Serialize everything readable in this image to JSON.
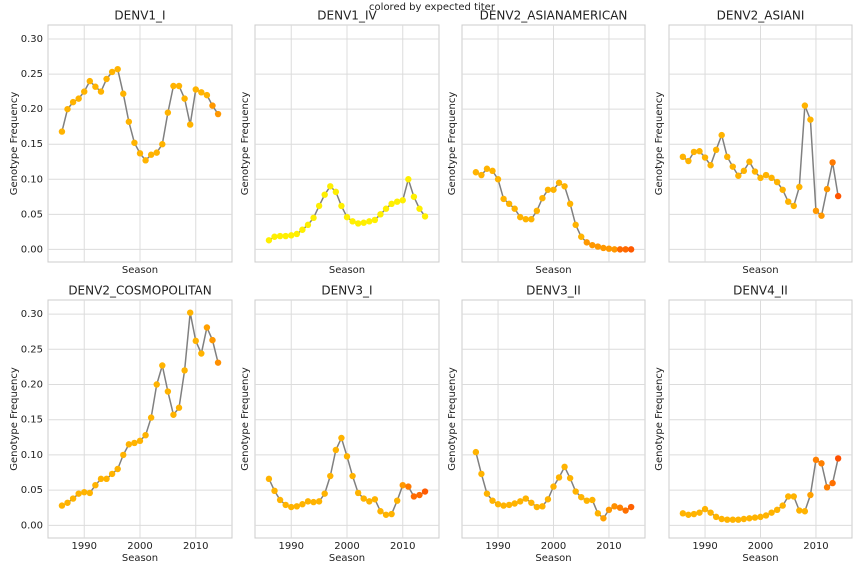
{
  "title": "colored by expected titer",
  "chart_data": [
    {
      "type": "line",
      "title": "DENV1_I",
      "xlabel": "Season",
      "ylabel": "Genotype Frequency",
      "line_color": "#808080",
      "x": [
        1986,
        1987,
        1988,
        1989,
        1990,
        1991,
        1992,
        1993,
        1994,
        1995,
        1996,
        1997,
        1998,
        1999,
        2000,
        2001,
        2002,
        2003,
        2004,
        2005,
        2006,
        2007,
        2008,
        2009,
        2010,
        2011,
        2012,
        2013,
        2014
      ],
      "values": [
        0.168,
        0.2,
        0.21,
        0.215,
        0.225,
        0.24,
        0.232,
        0.225,
        0.243,
        0.253,
        0.257,
        0.222,
        0.182,
        0.152,
        0.137,
        0.127,
        0.135,
        0.138,
        0.15,
        0.195,
        0.233,
        0.233,
        0.215,
        0.178,
        0.228,
        0.224,
        0.22,
        0.205,
        0.193
      ],
      "colors": [
        "#ffb300",
        "#ffb300",
        "#ffb300",
        "#ffb300",
        "#ffb300",
        "#ffb300",
        "#ffb300",
        "#ffb300",
        "#ffb300",
        "#ffb300",
        "#ffb300",
        "#ffb300",
        "#ffb300",
        "#ffb300",
        "#ffb300",
        "#ffb300",
        "#ffb300",
        "#ffb300",
        "#ffb300",
        "#ffb300",
        "#ffb300",
        "#ffb300",
        "#ffb300",
        "#ffb300",
        "#ffb300",
        "#ffb300",
        "#ffb300",
        "#ff9800",
        "#ff9800"
      ],
      "xlim": [
        1983.5,
        2016.5
      ],
      "ylim": [
        -0.018,
        0.32
      ],
      "xticks": [
        1990,
        2000,
        2010
      ],
      "yticks": [
        {
          "value": 0,
          "label": "0.00"
        },
        {
          "value": 0.05,
          "label": "0.05"
        },
        {
          "value": 0.1,
          "label": "0.10"
        },
        {
          "value": 0.15,
          "label": "0.15"
        },
        {
          "value": 0.2,
          "label": "0.20"
        },
        {
          "value": 0.25,
          "label": "0.25"
        },
        {
          "value": 0.3,
          "label": "0.30"
        }
      ]
    },
    {
      "type": "line",
      "title": "DENV1_IV",
      "xlabel": "Season",
      "ylabel": "Genotype Frequency",
      "line_color": "#808080",
      "x": [
        1986,
        1987,
        1988,
        1989,
        1990,
        1991,
        1992,
        1993,
        1994,
        1995,
        1996,
        1997,
        1998,
        1999,
        2000,
        2001,
        2002,
        2003,
        2004,
        2005,
        2006,
        2007,
        2008,
        2009,
        2010,
        2011,
        2012,
        2013,
        2014
      ],
      "values": [
        0.013,
        0.018,
        0.019,
        0.019,
        0.02,
        0.022,
        0.028,
        0.035,
        0.045,
        0.062,
        0.078,
        0.09,
        0.082,
        0.062,
        0.046,
        0.04,
        0.037,
        0.038,
        0.04,
        0.042,
        0.05,
        0.058,
        0.065,
        0.068,
        0.07,
        0.1,
        0.075,
        0.058,
        0.047
      ],
      "colors": [
        "#ffef00",
        "#ffef00",
        "#ffef00",
        "#ffef00",
        "#ffef00",
        "#ffef00",
        "#ffef00",
        "#ffef00",
        "#ffef00",
        "#ffef00",
        "#ffef00",
        "#ffef00",
        "#ffef00",
        "#ffef00",
        "#ffef00",
        "#ffef00",
        "#ffef00",
        "#ffef00",
        "#ffef00",
        "#ffef00",
        "#ffef00",
        "#ffef00",
        "#ffef00",
        "#ffef00",
        "#ffef00",
        "#ffef00",
        "#ffef00",
        "#ffef00",
        "#ffef00"
      ],
      "xlim": [
        1983.5,
        2016.5
      ],
      "ylim": [
        -0.018,
        0.32
      ],
      "xticks": [
        1990,
        2000,
        2010
      ],
      "yticks": [
        {
          "value": 0,
          "label": "0.00"
        },
        {
          "value": 0.05,
          "label": "0.05"
        },
        {
          "value": 0.1,
          "label": "0.10"
        },
        {
          "value": 0.15,
          "label": "0.15"
        },
        {
          "value": 0.2,
          "label": "0.20"
        },
        {
          "value": 0.25,
          "label": "0.25"
        },
        {
          "value": 0.3,
          "label": "0.30"
        }
      ]
    },
    {
      "type": "line",
      "title": "DENV2_ASIANAMERICAN",
      "xlabel": "Season",
      "ylabel": "Genotype Frequency",
      "line_color": "#808080",
      "x": [
        1986,
        1987,
        1988,
        1989,
        1990,
        1991,
        1992,
        1993,
        1994,
        1995,
        1996,
        1997,
        1998,
        1999,
        2000,
        2001,
        2002,
        2003,
        2004,
        2005,
        2006,
        2007,
        2008,
        2009,
        2010,
        2011,
        2012,
        2013,
        2014
      ],
      "values": [
        0.11,
        0.106,
        0.115,
        0.112,
        0.1,
        0.072,
        0.065,
        0.058,
        0.046,
        0.043,
        0.043,
        0.055,
        0.073,
        0.085,
        0.085,
        0.095,
        0.09,
        0.065,
        0.035,
        0.018,
        0.01,
        0.006,
        0.004,
        0.002,
        0.001,
        0,
        0,
        0,
        0
      ],
      "colors": [
        "#ffb300",
        "#ffb300",
        "#ffb300",
        "#ffb300",
        "#ffb300",
        "#ffb300",
        "#ffb300",
        "#ffb300",
        "#ffb300",
        "#ffb300",
        "#ffb300",
        "#ffb300",
        "#ffb300",
        "#ffb300",
        "#ffb300",
        "#ffb300",
        "#ffb300",
        "#ffb300",
        "#ffb300",
        "#ffb300",
        "#ff9800",
        "#ff9800",
        "#ff9800",
        "#ff9800",
        "#ff9800",
        "#ff9800",
        "#ff6a00",
        "#ff6a00",
        "#ff5a00"
      ],
      "xlim": [
        1983.5,
        2016.5
      ],
      "ylim": [
        -0.018,
        0.32
      ],
      "xticks": [
        1990,
        2000,
        2010
      ],
      "yticks": [
        {
          "value": 0,
          "label": "0.00"
        },
        {
          "value": 0.05,
          "label": "0.05"
        },
        {
          "value": 0.1,
          "label": "0.10"
        },
        {
          "value": 0.15,
          "label": "0.15"
        },
        {
          "value": 0.2,
          "label": "0.20"
        },
        {
          "value": 0.25,
          "label": "0.25"
        },
        {
          "value": 0.3,
          "label": "0.30"
        }
      ]
    },
    {
      "type": "line",
      "title": "DENV2_ASIANI",
      "xlabel": "Season",
      "ylabel": "Genotype Frequency",
      "line_color": "#808080",
      "x": [
        1986,
        1987,
        1988,
        1989,
        1990,
        1991,
        1992,
        1993,
        1994,
        1995,
        1996,
        1997,
        1998,
        1999,
        2000,
        2001,
        2002,
        2003,
        2004,
        2005,
        2006,
        2007,
        2008,
        2009,
        2010,
        2011,
        2012,
        2013,
        2014
      ],
      "values": [
        0.132,
        0.126,
        0.139,
        0.14,
        0.131,
        0.12,
        0.142,
        0.163,
        0.132,
        0.118,
        0.105,
        0.112,
        0.125,
        0.111,
        0.102,
        0.106,
        0.102,
        0.096,
        0.085,
        0.068,
        0.062,
        0.089,
        0.205,
        0.185,
        0.055,
        0.048,
        0.086,
        0.124,
        0.076
      ],
      "colors": [
        "#ffb300",
        "#ffb300",
        "#ffb300",
        "#ffb300",
        "#ffb300",
        "#ffb300",
        "#ffb300",
        "#ffb300",
        "#ffb300",
        "#ffb300",
        "#ffb300",
        "#ffb300",
        "#ffb300",
        "#ffb300",
        "#ffb300",
        "#ffb300",
        "#ffb300",
        "#ffb300",
        "#ffb300",
        "#ffb300",
        "#ffb300",
        "#ffb300",
        "#ffb300",
        "#ffb300",
        "#ff9800",
        "#ff9800",
        "#ff9800",
        "#ff7a00",
        "#ff5500"
      ],
      "xlim": [
        1983.5,
        2016.5
      ],
      "ylim": [
        -0.018,
        0.32
      ],
      "xticks": [
        1990,
        2000,
        2010
      ],
      "yticks": [
        {
          "value": 0,
          "label": "0.00"
        },
        {
          "value": 0.05,
          "label": "0.05"
        },
        {
          "value": 0.1,
          "label": "0.10"
        },
        {
          "value": 0.15,
          "label": "0.15"
        },
        {
          "value": 0.2,
          "label": "0.20"
        },
        {
          "value": 0.25,
          "label": "0.25"
        },
        {
          "value": 0.3,
          "label": "0.30"
        }
      ]
    },
    {
      "type": "line",
      "title": "DENV2_COSMOPOLITAN",
      "xlabel": "Season",
      "ylabel": "Genotype Frequency",
      "line_color": "#808080",
      "x": [
        1986,
        1987,
        1988,
        1989,
        1990,
        1991,
        1992,
        1993,
        1994,
        1995,
        1996,
        1997,
        1998,
        1999,
        2000,
        2001,
        2002,
        2003,
        2004,
        2005,
        2006,
        2007,
        2008,
        2009,
        2010,
        2011,
        2012,
        2013,
        2014
      ],
      "values": [
        0.028,
        0.032,
        0.038,
        0.045,
        0.047,
        0.046,
        0.057,
        0.066,
        0.066,
        0.073,
        0.08,
        0.1,
        0.115,
        0.117,
        0.12,
        0.128,
        0.153,
        0.2,
        0.227,
        0.19,
        0.157,
        0.167,
        0.22,
        0.302,
        0.262,
        0.244,
        0.281,
        0.263,
        0.231
      ],
      "colors": [
        "#ffb300",
        "#ffb300",
        "#ffb300",
        "#ffb300",
        "#ffb300",
        "#ffb300",
        "#ffb300",
        "#ffb300",
        "#ffb300",
        "#ffb300",
        "#ffb300",
        "#ffb300",
        "#ffb300",
        "#ffb300",
        "#ffb300",
        "#ffb300",
        "#ffb300",
        "#ffb300",
        "#ffb300",
        "#ffb300",
        "#ffb300",
        "#ffb300",
        "#ffb300",
        "#ffb300",
        "#ffb300",
        "#ffb300",
        "#ffa000",
        "#ff9800",
        "#ff9000"
      ],
      "xlim": [
        1983.5,
        2016.5
      ],
      "ylim": [
        -0.018,
        0.32
      ],
      "xticks": [
        1990,
        2000,
        2010
      ],
      "yticks": [
        {
          "value": 0,
          "label": "0.00"
        },
        {
          "value": 0.05,
          "label": "0.05"
        },
        {
          "value": 0.1,
          "label": "0.10"
        },
        {
          "value": 0.15,
          "label": "0.15"
        },
        {
          "value": 0.2,
          "label": "0.20"
        },
        {
          "value": 0.25,
          "label": "0.25"
        },
        {
          "value": 0.3,
          "label": "0.30"
        }
      ]
    },
    {
      "type": "line",
      "title": "DENV3_I",
      "xlabel": "Season",
      "ylabel": "Genotype Frequency",
      "line_color": "#808080",
      "x": [
        1986,
        1987,
        1988,
        1989,
        1990,
        1991,
        1992,
        1993,
        1994,
        1995,
        1996,
        1997,
        1998,
        1999,
        2000,
        2001,
        2002,
        2003,
        2004,
        2005,
        2006,
        2007,
        2008,
        2009,
        2010,
        2011,
        2012,
        2013,
        2014
      ],
      "values": [
        0.066,
        0.049,
        0.036,
        0.029,
        0.026,
        0.027,
        0.03,
        0.034,
        0.033,
        0.034,
        0.045,
        0.07,
        0.107,
        0.124,
        0.098,
        0.07,
        0.046,
        0.038,
        0.034,
        0.037,
        0.02,
        0.015,
        0.016,
        0.035,
        0.057,
        0.055,
        0.041,
        0.043,
        0.048
      ],
      "colors": [
        "#ffb300",
        "#ffb300",
        "#ffb300",
        "#ffb300",
        "#ffb300",
        "#ffb300",
        "#ffb300",
        "#ffb300",
        "#ffb300",
        "#ffb300",
        "#ffb300",
        "#ffb300",
        "#ffb300",
        "#ffb300",
        "#ffb300",
        "#ffb300",
        "#ffb300",
        "#ffb300",
        "#ffb300",
        "#ffb300",
        "#ffb300",
        "#ffb300",
        "#ffb300",
        "#ffb300",
        "#ff9800",
        "#ff7a00",
        "#ff6a00",
        "#ff6a00",
        "#ff5a00"
      ],
      "xlim": [
        1983.5,
        2016.5
      ],
      "ylim": [
        -0.018,
        0.32
      ],
      "xticks": [
        1990,
        2000,
        2010
      ],
      "yticks": [
        {
          "value": 0,
          "label": "0.00"
        },
        {
          "value": 0.05,
          "label": "0.05"
        },
        {
          "value": 0.1,
          "label": "0.10"
        },
        {
          "value": 0.15,
          "label": "0.15"
        },
        {
          "value": 0.2,
          "label": "0.20"
        },
        {
          "value": 0.25,
          "label": "0.25"
        },
        {
          "value": 0.3,
          "label": "0.30"
        }
      ]
    },
    {
      "type": "line",
      "title": "DENV3_II",
      "xlabel": "Season",
      "ylabel": "Genotype Frequency",
      "line_color": "#808080",
      "x": [
        1986,
        1987,
        1988,
        1989,
        1990,
        1991,
        1992,
        1993,
        1994,
        1995,
        1996,
        1997,
        1998,
        1999,
        2000,
        2001,
        2002,
        2003,
        2004,
        2005,
        2006,
        2007,
        2008,
        2009,
        2010,
        2011,
        2012,
        2013,
        2014
      ],
      "values": [
        0.104,
        0.073,
        0.045,
        0.035,
        0.03,
        0.028,
        0.029,
        0.031,
        0.034,
        0.038,
        0.032,
        0.026,
        0.027,
        0.037,
        0.055,
        0.068,
        0.083,
        0.067,
        0.048,
        0.04,
        0.035,
        0.036,
        0.017,
        0.01,
        0.022,
        0.027,
        0.025,
        0.021,
        0.026
      ],
      "colors": [
        "#ffb300",
        "#ffb300",
        "#ffb300",
        "#ffb300",
        "#ffb300",
        "#ffb300",
        "#ffb300",
        "#ffb300",
        "#ffb300",
        "#ffb300",
        "#ffb300",
        "#ffb300",
        "#ffb300",
        "#ffb300",
        "#ffb300",
        "#ffb300",
        "#ffb300",
        "#ffb300",
        "#ffb300",
        "#ffb300",
        "#ffb300",
        "#ffb300",
        "#ffb300",
        "#ffa000",
        "#ff9800",
        "#ff9000",
        "#ff8000",
        "#ff7000",
        "#ff6000"
      ],
      "xlim": [
        1983.5,
        2016.5
      ],
      "ylim": [
        -0.018,
        0.32
      ],
      "xticks": [
        1990,
        2000,
        2010
      ],
      "yticks": [
        {
          "value": 0,
          "label": "0.00"
        },
        {
          "value": 0.05,
          "label": "0.05"
        },
        {
          "value": 0.1,
          "label": "0.10"
        },
        {
          "value": 0.15,
          "label": "0.15"
        },
        {
          "value": 0.2,
          "label": "0.20"
        },
        {
          "value": 0.25,
          "label": "0.25"
        },
        {
          "value": 0.3,
          "label": "0.30"
        }
      ]
    },
    {
      "type": "line",
      "title": "DENV4_II",
      "xlabel": "Season",
      "ylabel": "Genotype Frequency",
      "line_color": "#808080",
      "x": [
        1986,
        1987,
        1988,
        1989,
        1990,
        1991,
        1992,
        1993,
        1994,
        1995,
        1996,
        1997,
        1998,
        1999,
        2000,
        2001,
        2002,
        2003,
        2004,
        2005,
        2006,
        2007,
        2008,
        2009,
        2010,
        2011,
        2012,
        2013,
        2014
      ],
      "values": [
        0.017,
        0.015,
        0.016,
        0.018,
        0.023,
        0.018,
        0.012,
        0.009,
        0.008,
        0.008,
        0.008,
        0.009,
        0.01,
        0.011,
        0.012,
        0.014,
        0.018,
        0.022,
        0.028,
        0.041,
        0.041,
        0.021,
        0.02,
        0.043,
        0.093,
        0.088,
        0.054,
        0.06,
        0.095
      ],
      "colors": [
        "#ffb300",
        "#ffb300",
        "#ffb300",
        "#ffb300",
        "#ffb300",
        "#ffb300",
        "#ffb300",
        "#ffb300",
        "#ffb300",
        "#ffb300",
        "#ffb300",
        "#ffb300",
        "#ffb300",
        "#ffb300",
        "#ffb300",
        "#ffb300",
        "#ffb300",
        "#ffb300",
        "#ffb300",
        "#ffb300",
        "#ffb300",
        "#ffb300",
        "#ffb300",
        "#ffa000",
        "#ff8000",
        "#ff8000",
        "#ff8000",
        "#ff7000",
        "#ff5000"
      ],
      "xlim": [
        1983.5,
        2016.5
      ],
      "ylim": [
        -0.018,
        0.32
      ],
      "xticks": [
        1990,
        2000,
        2010
      ],
      "yticks": [
        {
          "value": 0,
          "label": "0.00"
        },
        {
          "value": 0.05,
          "label": "0.05"
        },
        {
          "value": 0.1,
          "label": "0.10"
        },
        {
          "value": 0.15,
          "label": "0.15"
        },
        {
          "value": 0.2,
          "label": "0.20"
        },
        {
          "value": 0.25,
          "label": "0.25"
        },
        {
          "value": 0.3,
          "label": "0.30"
        }
      ]
    }
  ]
}
